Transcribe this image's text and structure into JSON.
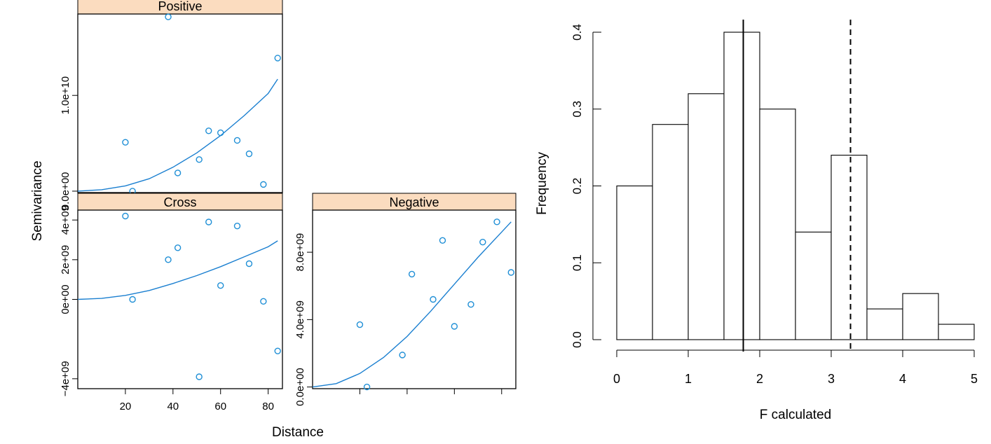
{
  "chart_data": [
    {
      "type": "scatter",
      "panel_label": "Positive",
      "ylabel": "Semivariance",
      "xlabel": "Distance",
      "xlim": [
        0,
        86
      ],
      "ylim": [
        -150000000,
        18500000000
      ],
      "x_ticks": [],
      "y_ticks": [
        "0.0e+00",
        "1.0e+10"
      ],
      "y_tick_values": [
        0,
        10000000000
      ],
      "points": [
        {
          "x": 20,
          "y": 5100000000
        },
        {
          "x": 23,
          "y": 0
        },
        {
          "x": 38,
          "y": 18200000000
        },
        {
          "x": 42,
          "y": 1900000000
        },
        {
          "x": 51,
          "y": 3300000000
        },
        {
          "x": 55,
          "y": 6300000000
        },
        {
          "x": 60,
          "y": 6100000000
        },
        {
          "x": 67,
          "y": 5300000000
        },
        {
          "x": 72,
          "y": 3900000000
        },
        {
          "x": 78,
          "y": 700000000
        },
        {
          "x": 84,
          "y": 13900000000
        }
      ],
      "fit": [
        {
          "x": 0,
          "y": 0
        },
        {
          "x": 10,
          "y": 150000000
        },
        {
          "x": 20,
          "y": 550000000
        },
        {
          "x": 30,
          "y": 1300000000
        },
        {
          "x": 40,
          "y": 2500000000
        },
        {
          "x": 50,
          "y": 4000000000
        },
        {
          "x": 60,
          "y": 5800000000
        },
        {
          "x": 70,
          "y": 7900000000
        },
        {
          "x": 80,
          "y": 10200000000
        },
        {
          "x": 84,
          "y": 11700000000
        }
      ]
    },
    {
      "type": "scatter",
      "panel_label": "Cross",
      "xlim": [
        0,
        86
      ],
      "ylim": [
        -4500000000,
        4500000000
      ],
      "x_ticks": [
        "20",
        "40",
        "60",
        "80"
      ],
      "x_tick_values": [
        20,
        40,
        60,
        80
      ],
      "y_ticks": [
        "−4e+09",
        "0e+00",
        "2e+09",
        "4e+09"
      ],
      "y_tick_values": [
        -4000000000,
        0,
        2000000000,
        4000000000
      ],
      "points": [
        {
          "x": 20,
          "y": 4200000000
        },
        {
          "x": 23,
          "y": 0
        },
        {
          "x": 38,
          "y": 2000000000
        },
        {
          "x": 42,
          "y": 2600000000
        },
        {
          "x": 51,
          "y": -3900000000
        },
        {
          "x": 55,
          "y": 3900000000
        },
        {
          "x": 60,
          "y": 700000000
        },
        {
          "x": 67,
          "y": 3700000000
        },
        {
          "x": 72,
          "y": 1800000000
        },
        {
          "x": 78,
          "y": -100000000
        },
        {
          "x": 84,
          "y": -2600000000
        }
      ],
      "fit": [
        {
          "x": 0,
          "y": 0
        },
        {
          "x": 10,
          "y": 50000000
        },
        {
          "x": 20,
          "y": 200000000
        },
        {
          "x": 30,
          "y": 450000000
        },
        {
          "x": 40,
          "y": 800000000
        },
        {
          "x": 50,
          "y": 1200000000
        },
        {
          "x": 60,
          "y": 1650000000
        },
        {
          "x": 70,
          "y": 2150000000
        },
        {
          "x": 80,
          "y": 2650000000
        },
        {
          "x": 84,
          "y": 2950000000
        }
      ]
    },
    {
      "type": "scatter",
      "panel_label": "Negative",
      "xlim": [
        0,
        86
      ],
      "ylim": [
        -100000000,
        10500000000
      ],
      "x_ticks": [
        "",
        "",
        "",
        ""
      ],
      "x_tick_values": [
        20,
        40,
        60,
        80
      ],
      "y_ticks": [
        "0.0e+00",
        "4.0e+09",
        "8.0e+09"
      ],
      "y_tick_values": [
        0,
        4000000000,
        8000000000
      ],
      "points": [
        {
          "x": 20,
          "y": 3700000000
        },
        {
          "x": 23,
          "y": 0
        },
        {
          "x": 38,
          "y": 1900000000
        },
        {
          "x": 42,
          "y": 6700000000
        },
        {
          "x": 51,
          "y": 5200000000
        },
        {
          "x": 55,
          "y": 8700000000
        },
        {
          "x": 60,
          "y": 3600000000
        },
        {
          "x": 67,
          "y": 4900000000
        },
        {
          "x": 72,
          "y": 8600000000
        },
        {
          "x": 78,
          "y": 9800000000
        },
        {
          "x": 84,
          "y": 6800000000
        }
      ],
      "fit": [
        {
          "x": 0,
          "y": 0
        },
        {
          "x": 10,
          "y": 200000000
        },
        {
          "x": 20,
          "y": 800000000
        },
        {
          "x": 30,
          "y": 1750000000
        },
        {
          "x": 40,
          "y": 3000000000
        },
        {
          "x": 50,
          "y": 4500000000
        },
        {
          "x": 60,
          "y": 6100000000
        },
        {
          "x": 70,
          "y": 7700000000
        },
        {
          "x": 80,
          "y": 9200000000
        },
        {
          "x": 84,
          "y": 9800000000
        }
      ]
    },
    {
      "type": "bar",
      "subtype": "histogram",
      "xlabel": "F calculated",
      "ylabel": "Frequency",
      "xlim": [
        0,
        5
      ],
      "ylim": [
        0,
        0.4
      ],
      "x_ticks": [
        "0",
        "1",
        "2",
        "3",
        "4",
        "5"
      ],
      "x_tick_values": [
        0,
        1,
        2,
        3,
        4,
        5
      ],
      "y_ticks": [
        "0.0",
        "0.1",
        "0.2",
        "0.3",
        "0.4"
      ],
      "y_tick_values": [
        0,
        0.1,
        0.2,
        0.3,
        0.4
      ],
      "bins": [
        {
          "from": 0.0,
          "to": 0.5,
          "value": 0.2
        },
        {
          "from": 0.5,
          "to": 1.0,
          "value": 0.28
        },
        {
          "from": 1.0,
          "to": 1.5,
          "value": 0.32
        },
        {
          "from": 1.5,
          "to": 2.0,
          "value": 0.4
        },
        {
          "from": 2.0,
          "to": 2.5,
          "value": 0.3
        },
        {
          "from": 2.5,
          "to": 3.0,
          "value": 0.14
        },
        {
          "from": 3.0,
          "to": 3.5,
          "value": 0.24
        },
        {
          "from": 3.5,
          "to": 4.0,
          "value": 0.04
        },
        {
          "from": 4.0,
          "to": 4.5,
          "value": 0.06
        },
        {
          "from": 4.5,
          "to": 5.0,
          "value": 0.02
        }
      ],
      "vlines": [
        {
          "x": 1.77,
          "style": "solid"
        },
        {
          "x": 3.27,
          "style": "dashed"
        }
      ]
    }
  ],
  "colors": {
    "point": "#1f8fd6",
    "fit": "#1a7fd0",
    "strip": "#fbdcbf",
    "ink": "#000000"
  }
}
